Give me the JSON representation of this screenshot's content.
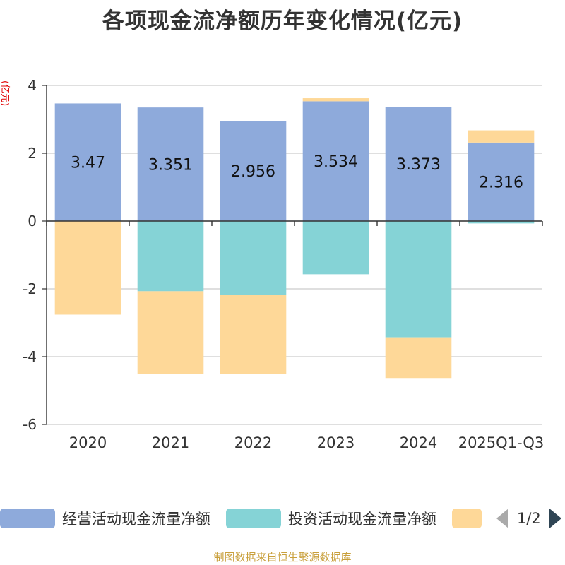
{
  "chart_data": {
    "type": "bar",
    "stacked": true,
    "title": "各项现金流净额历年变化情况(亿元)",
    "ylabel": "(亿元)",
    "xlabel": "",
    "ylim": [
      -6,
      4
    ],
    "yticks": [
      4,
      2,
      0,
      -2,
      -4,
      -6
    ],
    "categories": [
      "2020",
      "2021",
      "2022",
      "2023",
      "2024",
      "2025Q1-Q3"
    ],
    "series": [
      {
        "name": "经营活动现金流量净额",
        "color": "#8eaadb",
        "values": [
          3.47,
          3.351,
          2.956,
          3.534,
          3.373,
          2.316
        ],
        "labels": [
          "3.47",
          "3.351",
          "2.956",
          "3.534",
          "3.373",
          "2.316"
        ]
      },
      {
        "name": "投资活动现金流量净额",
        "color": "#85d3d6",
        "values": [
          0.0,
          -2.07,
          -2.18,
          -1.57,
          -3.43,
          -0.07
        ]
      },
      {
        "name": "",
        "color": "#fed898",
        "values": [
          -2.76,
          -2.44,
          -2.34,
          0.09,
          -1.2,
          0.36
        ]
      }
    ],
    "legend_position": "bottom"
  },
  "legend": {
    "page": "1/2"
  },
  "footer": "制图数据来自恒生聚源数据库"
}
